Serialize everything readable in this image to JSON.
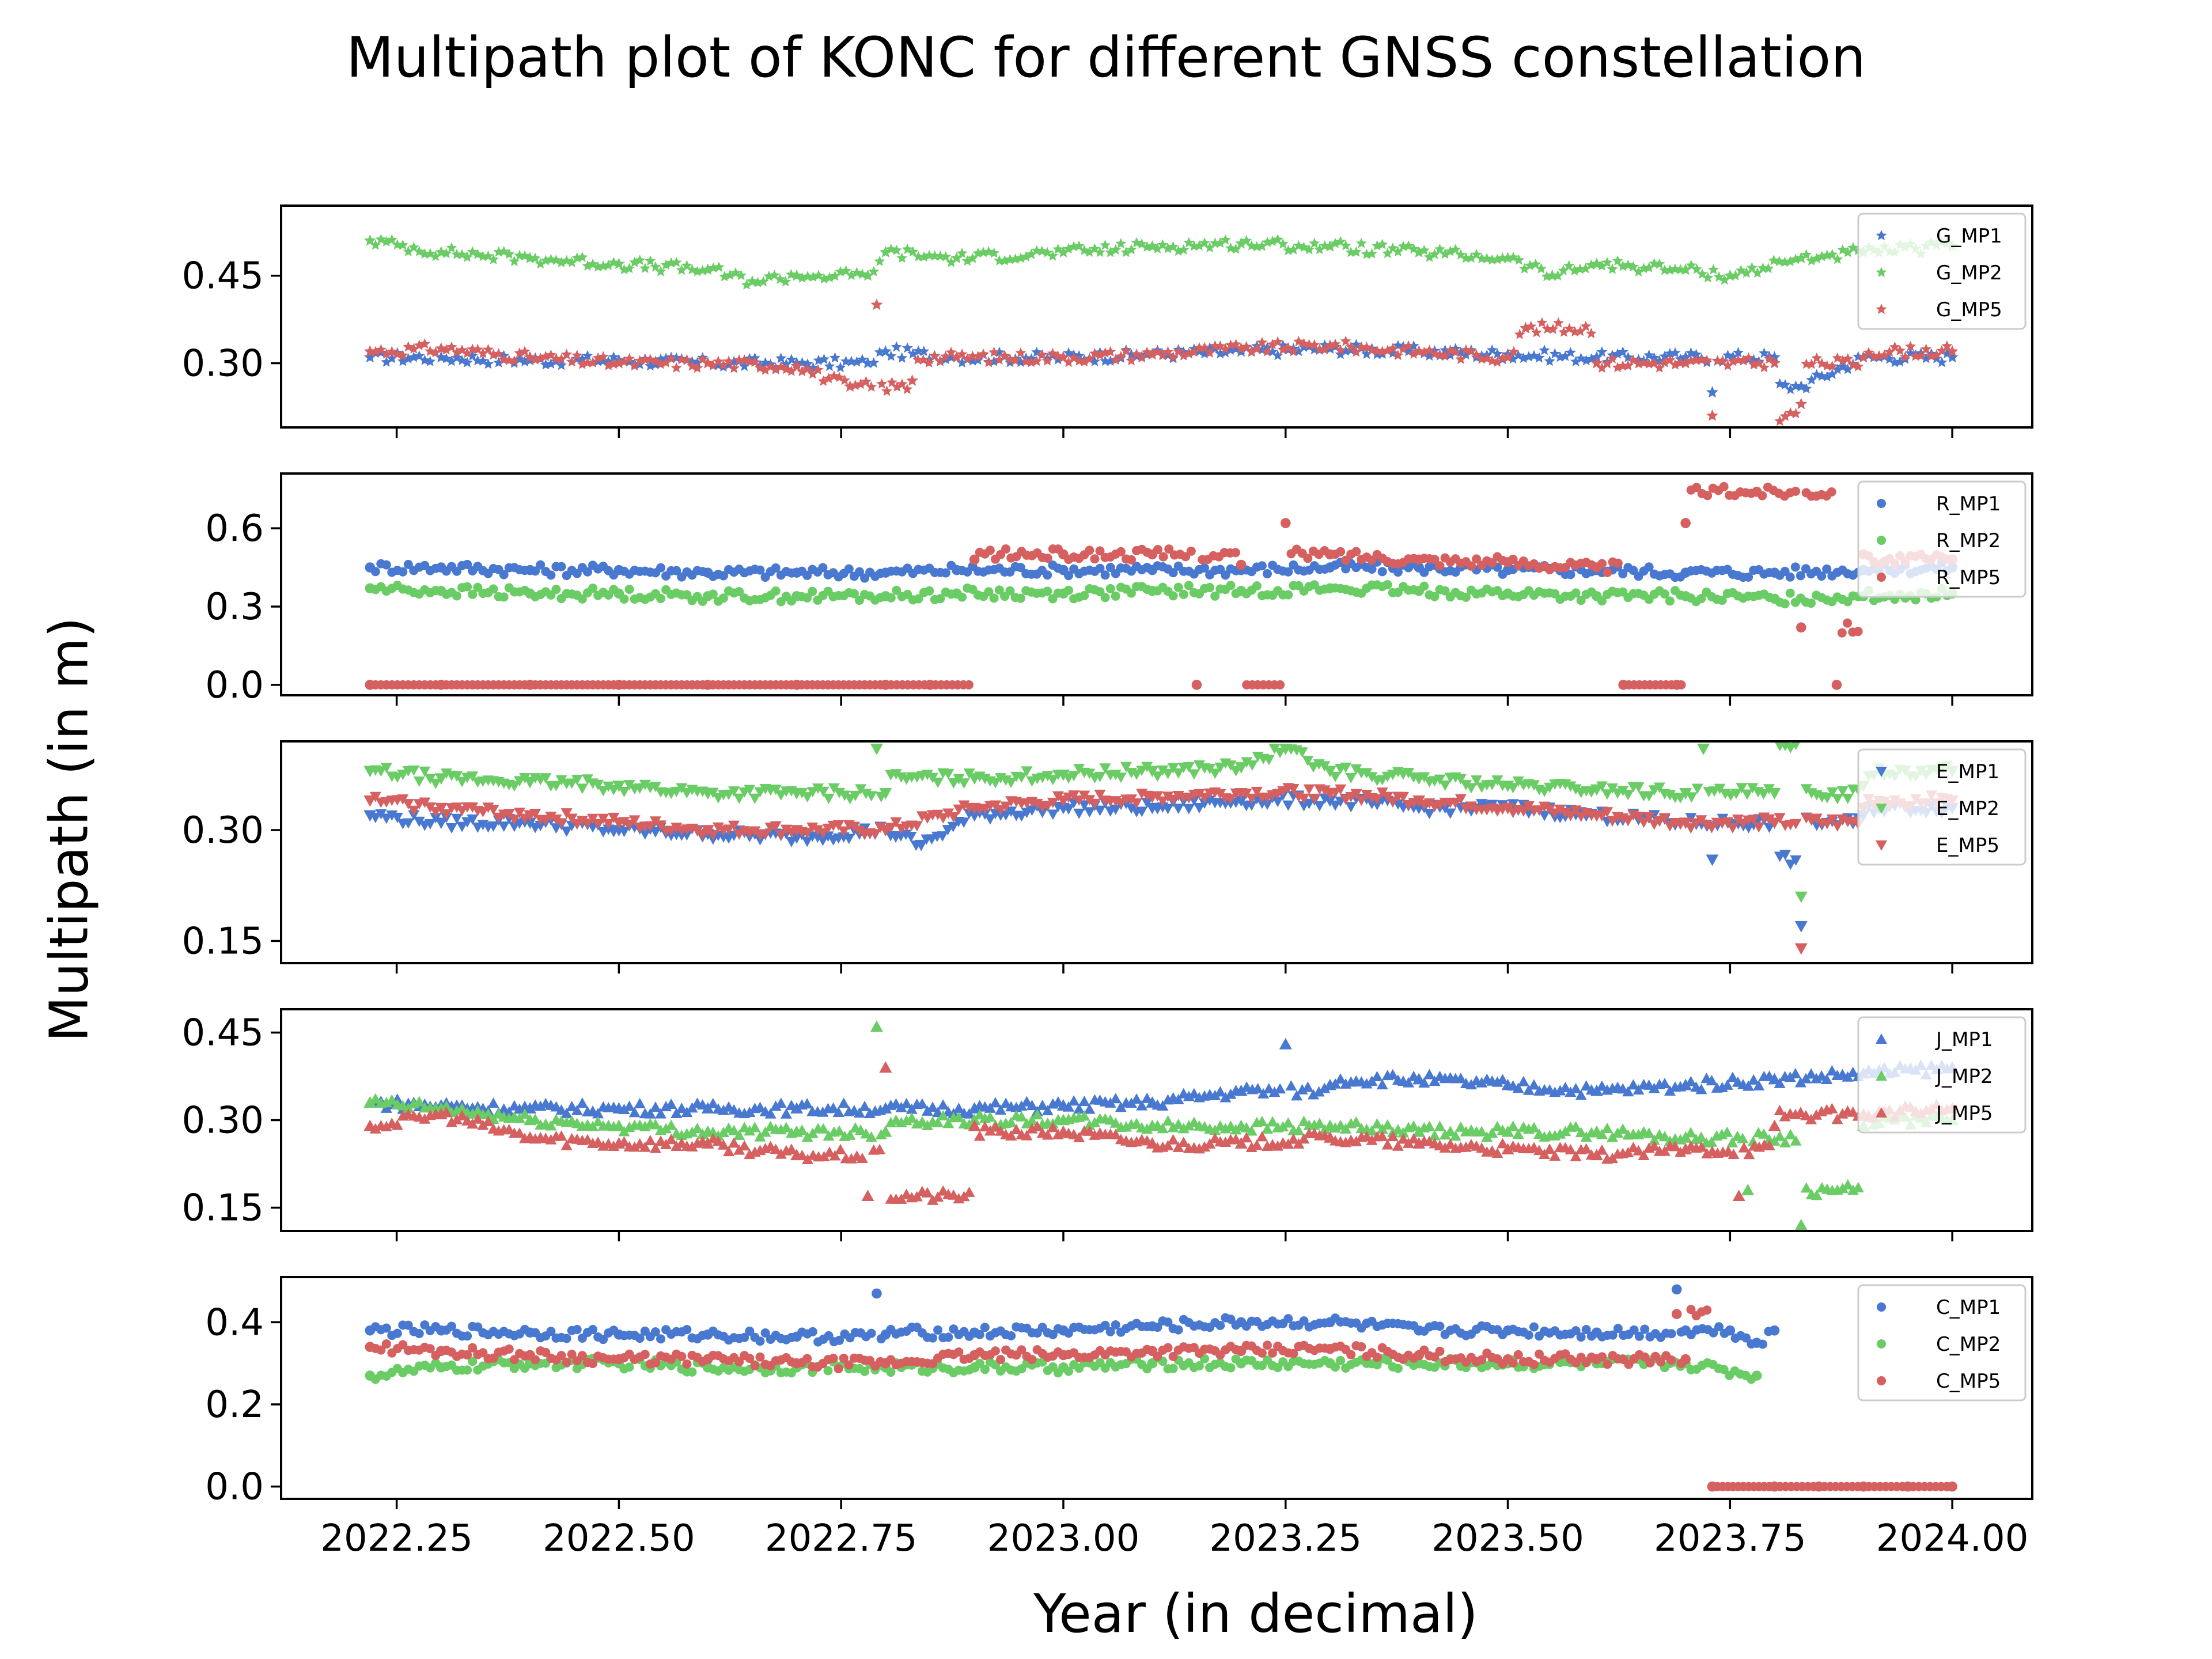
{
  "figure": {
    "title": "Multipath plot of KONC for different GNSS constellation",
    "xlabel": "Year (in decimal)",
    "ylabel": "Multipath (in m)"
  },
  "chart_data": [
    {
      "type": "scatter",
      "panel": "G",
      "xlim": [
        2022.12,
        2024.09
      ],
      "ylim": [
        0.19,
        0.57
      ],
      "yticks": [
        0.3,
        0.45
      ],
      "ytick_labels": [
        "0.30",
        "0.45"
      ],
      "marker": "star",
      "legend": "upper-right",
      "colors": {
        "MP1": "#4878d0",
        "MP2": "#6acc64",
        "MP5": "#d65f5f"
      },
      "series": [
        {
          "name": "G_MP1",
          "color": "#4878d0",
          "x": [
            2022.22,
            2022.3,
            2022.4,
            2022.5,
            2022.6,
            2022.7,
            2022.78,
            2022.8,
            2022.88,
            2023.0,
            2023.1,
            2023.2,
            2023.3,
            2023.4,
            2023.5,
            2023.6,
            2023.7,
            2023.73,
            2023.8,
            2023.83,
            2023.9,
            2024.0
          ],
          "y": [
            0.31,
            0.31,
            0.305,
            0.305,
            0.3,
            0.3,
            0.3,
            0.32,
            0.31,
            0.31,
            0.315,
            0.32,
            0.325,
            0.32,
            0.315,
            0.31,
            0.31,
            0.25,
            0.31,
            0.26,
            0.31,
            0.31
          ]
        },
        {
          "name": "G_MP2",
          "color": "#6acc64",
          "x": [
            2022.22,
            2022.3,
            2022.4,
            2022.5,
            2022.6,
            2022.65,
            2022.7,
            2022.78,
            2022.8,
            2022.88,
            2023.0,
            2023.1,
            2023.2,
            2023.3,
            2023.4,
            2023.5,
            2023.55,
            2023.6,
            2023.7,
            2023.75,
            2023.83,
            2023.9,
            2024.0
          ],
          "y": [
            0.51,
            0.49,
            0.48,
            0.47,
            0.46,
            0.44,
            0.45,
            0.45,
            0.49,
            0.48,
            0.49,
            0.5,
            0.505,
            0.5,
            0.49,
            0.48,
            0.45,
            0.47,
            0.46,
            0.45,
            0.48,
            0.49,
            0.5
          ]
        },
        {
          "name": "G_MP5",
          "color": "#d65f5f",
          "x": [
            2022.22,
            2022.3,
            2022.4,
            2022.5,
            2022.6,
            2022.7,
            2022.76,
            2022.79,
            2022.83,
            2022.88,
            2023.0,
            2023.1,
            2023.2,
            2023.3,
            2023.4,
            2023.5,
            2023.52,
            2023.6,
            2023.7,
            2023.73,
            2023.8,
            2023.83,
            2023.9,
            2024.0
          ],
          "y": [
            0.32,
            0.325,
            0.31,
            0.3,
            0.3,
            0.295,
            0.26,
            0.4,
            0.27,
            0.31,
            0.31,
            0.315,
            0.325,
            0.33,
            0.32,
            0.31,
            0.36,
            0.3,
            0.3,
            0.21,
            0.3,
            0.23,
            0.31,
            0.32
          ]
        }
      ]
    },
    {
      "type": "scatter",
      "panel": "R",
      "xlim": [
        2022.12,
        2024.09
      ],
      "ylim": [
        -0.04,
        0.81
      ],
      "yticks": [
        0.0,
        0.3,
        0.6
      ],
      "ytick_labels": [
        "0.0",
        "0.3",
        "0.6"
      ],
      "marker": "circle",
      "legend": "upper-right",
      "series": [
        {
          "name": "R_MP1",
          "color": "#4878d0",
          "x": [
            2022.22,
            2022.3,
            2022.4,
            2022.5,
            2022.6,
            2022.7,
            2022.8,
            2022.88,
            2023.0,
            2023.1,
            2023.2,
            2023.3,
            2023.4,
            2023.5,
            2023.6,
            2023.7,
            2023.8,
            2023.9,
            2024.0
          ],
          "y": [
            0.45,
            0.45,
            0.44,
            0.44,
            0.43,
            0.43,
            0.43,
            0.44,
            0.44,
            0.44,
            0.44,
            0.45,
            0.45,
            0.44,
            0.44,
            0.43,
            0.43,
            0.44,
            0.45
          ]
        },
        {
          "name": "R_MP2",
          "color": "#6acc64",
          "x": [
            2022.22,
            2022.3,
            2022.4,
            2022.5,
            2022.6,
            2022.7,
            2022.8,
            2022.88,
            2023.0,
            2023.1,
            2023.2,
            2023.3,
            2023.4,
            2023.5,
            2023.6,
            2023.7,
            2023.8,
            2023.9,
            2024.0
          ],
          "y": [
            0.37,
            0.36,
            0.35,
            0.35,
            0.34,
            0.34,
            0.34,
            0.35,
            0.35,
            0.36,
            0.36,
            0.37,
            0.36,
            0.35,
            0.34,
            0.34,
            0.33,
            0.34,
            0.35
          ]
        },
        {
          "name": "R_MP5",
          "color": "#d65f5f",
          "x": [
            2022.22,
            2022.3,
            2022.4,
            2022.5,
            2022.6,
            2022.7,
            2022.8,
            2022.85,
            2022.9,
            2023.0,
            2023.1,
            2023.15,
            2023.2,
            2023.25,
            2023.3,
            2023.4,
            2023.5,
            2023.6,
            2023.63,
            2023.69,
            2023.7,
            2023.78,
            2023.83,
            2023.87,
            2023.9,
            2024.0
          ],
          "y": [
            0.0,
            0.0,
            0.0,
            0.0,
            0.0,
            0.0,
            0.0,
            0.0,
            0.48,
            0.5,
            0.5,
            0.0,
            0.46,
            0.62,
            0.5,
            0.48,
            0.47,
            0.45,
            0.0,
            0.0,
            0.62,
            0.74,
            0.22,
            0.0,
            0.5,
            0.48
          ]
        }
      ]
    },
    {
      "type": "scatter",
      "panel": "E",
      "xlim": [
        2022.12,
        2024.09
      ],
      "ylim": [
        0.12,
        0.42
      ],
      "yticks": [
        0.15,
        0.3
      ],
      "ytick_labels": [
        "0.15",
        "0.30"
      ],
      "marker": "triangle-down",
      "legend": "upper-right",
      "series": [
        {
          "name": "E_MP1",
          "color": "#4878d0",
          "x": [
            2022.22,
            2022.3,
            2022.4,
            2022.5,
            2022.6,
            2022.7,
            2022.8,
            2022.84,
            2022.9,
            2023.0,
            2023.1,
            2023.2,
            2023.3,
            2023.4,
            2023.5,
            2023.6,
            2023.7,
            2023.73,
            2023.8,
            2023.83,
            2023.9,
            2024.0
          ],
          "y": [
            0.32,
            0.31,
            0.31,
            0.3,
            0.295,
            0.29,
            0.3,
            0.28,
            0.32,
            0.33,
            0.33,
            0.34,
            0.34,
            0.33,
            0.33,
            0.32,
            0.31,
            0.26,
            0.31,
            0.17,
            0.32,
            0.33
          ]
        },
        {
          "name": "E_MP2",
          "color": "#6acc64",
          "x": [
            2022.22,
            2022.3,
            2022.4,
            2022.5,
            2022.6,
            2022.7,
            2022.79,
            2022.8,
            2022.9,
            2023.0,
            2023.1,
            2023.2,
            2023.25,
            2023.3,
            2023.4,
            2023.5,
            2023.6,
            2023.7,
            2023.72,
            2023.8,
            2023.83,
            2023.9,
            2024.0
          ],
          "y": [
            0.38,
            0.37,
            0.365,
            0.36,
            0.35,
            0.35,
            0.41,
            0.35,
            0.37,
            0.375,
            0.38,
            0.385,
            0.41,
            0.38,
            0.37,
            0.36,
            0.355,
            0.35,
            0.41,
            0.35,
            0.21,
            0.36,
            0.38
          ]
        },
        {
          "name": "E_MP5",
          "color": "#d65f5f",
          "x": [
            2022.22,
            2022.3,
            2022.4,
            2022.5,
            2022.6,
            2022.7,
            2022.8,
            2022.9,
            2023.0,
            2023.1,
            2023.2,
            2023.3,
            2023.4,
            2023.5,
            2023.6,
            2023.7,
            2023.8,
            2023.83,
            2023.9,
            2024.0
          ],
          "y": [
            0.34,
            0.33,
            0.32,
            0.31,
            0.3,
            0.3,
            0.3,
            0.33,
            0.34,
            0.345,
            0.35,
            0.35,
            0.34,
            0.33,
            0.32,
            0.31,
            0.31,
            0.14,
            0.33,
            0.34
          ]
        }
      ]
    },
    {
      "type": "scatter",
      "panel": "J",
      "xlim": [
        2022.12,
        2024.09
      ],
      "ylim": [
        0.11,
        0.49
      ],
      "yticks": [
        0.15,
        0.3,
        0.45
      ],
      "ytick_labels": [
        "0.15",
        "0.30",
        "0.45"
      ],
      "marker": "triangle-up",
      "legend": "upper-right",
      "series": [
        {
          "name": "J_MP1",
          "color": "#4878d0",
          "x": [
            2022.22,
            2022.3,
            2022.4,
            2022.5,
            2022.6,
            2022.7,
            2022.8,
            2022.9,
            2023.0,
            2023.1,
            2023.2,
            2023.25,
            2023.3,
            2023.4,
            2023.5,
            2023.6,
            2023.7,
            2023.8,
            2023.9,
            2024.0
          ],
          "y": [
            0.33,
            0.325,
            0.32,
            0.32,
            0.32,
            0.32,
            0.32,
            0.32,
            0.325,
            0.33,
            0.35,
            0.43,
            0.36,
            0.37,
            0.36,
            0.35,
            0.36,
            0.37,
            0.38,
            0.39
          ]
        },
        {
          "name": "J_MP2",
          "color": "#6acc64",
          "x": [
            2022.22,
            2022.3,
            2022.4,
            2022.5,
            2022.6,
            2022.7,
            2022.79,
            2022.8,
            2022.9,
            2023.0,
            2023.1,
            2023.2,
            2023.3,
            2023.4,
            2023.5,
            2023.6,
            2023.7,
            2023.77,
            2023.83,
            2023.9,
            2024.0
          ],
          "y": [
            0.33,
            0.32,
            0.3,
            0.29,
            0.28,
            0.28,
            0.46,
            0.28,
            0.3,
            0.3,
            0.29,
            0.29,
            0.29,
            0.28,
            0.28,
            0.28,
            0.27,
            0.18,
            0.12,
            0.29,
            0.3
          ]
        },
        {
          "name": "J_MP5",
          "color": "#d65f5f",
          "x": [
            2022.22,
            2022.3,
            2022.4,
            2022.5,
            2022.6,
            2022.7,
            2022.78,
            2022.8,
            2022.9,
            2023.0,
            2023.1,
            2023.2,
            2023.3,
            2023.4,
            2023.5,
            2023.6,
            2023.7,
            2023.76,
            2023.8,
            2023.9,
            2024.0
          ],
          "y": [
            0.29,
            0.31,
            0.27,
            0.26,
            0.26,
            0.24,
            0.17,
            0.39,
            0.29,
            0.28,
            0.26,
            0.26,
            0.27,
            0.26,
            0.25,
            0.24,
            0.25,
            0.17,
            0.29,
            0.31,
            0.32
          ]
        }
      ]
    },
    {
      "type": "scatter",
      "panel": "C",
      "xlim": [
        2022.12,
        2024.09
      ],
      "ylim": [
        -0.03,
        0.51
      ],
      "yticks": [
        0.0,
        0.2,
        0.4
      ],
      "ytick_labels": [
        "0.0",
        "0.2",
        "0.4"
      ],
      "marker": "circle",
      "legend": "upper-right",
      "series": [
        {
          "name": "C_MP1",
          "color": "#4878d0",
          "x": [
            2022.22,
            2022.3,
            2022.4,
            2022.5,
            2022.6,
            2022.7,
            2022.79,
            2022.8,
            2022.9,
            2023.0,
            2023.1,
            2023.2,
            2023.3,
            2023.4,
            2023.5,
            2023.6,
            2023.69,
            2023.7,
            2023.75,
            2023.78,
            2023.8
          ],
          "y": [
            0.38,
            0.38,
            0.375,
            0.37,
            0.37,
            0.365,
            0.47,
            0.37,
            0.375,
            0.38,
            0.39,
            0.4,
            0.4,
            0.38,
            0.38,
            0.375,
            0.48,
            0.38,
            0.38,
            0.35,
            0.38
          ]
        },
        {
          "name": "C_MP2",
          "color": "#6acc64",
          "x": [
            2022.22,
            2022.3,
            2022.4,
            2022.5,
            2022.6,
            2022.7,
            2022.8,
            2022.9,
            2023.0,
            2023.1,
            2023.2,
            2023.3,
            2023.4,
            2023.5,
            2023.6,
            2023.7,
            2023.78
          ],
          "y": [
            0.27,
            0.29,
            0.3,
            0.3,
            0.29,
            0.29,
            0.29,
            0.29,
            0.29,
            0.3,
            0.3,
            0.3,
            0.3,
            0.3,
            0.3,
            0.3,
            0.27
          ]
        },
        {
          "name": "C_MP5",
          "color": "#d65f5f",
          "x": [
            2022.22,
            2022.3,
            2022.4,
            2022.5,
            2022.6,
            2022.7,
            2022.8,
            2022.9,
            2023.0,
            2023.1,
            2023.2,
            2023.3,
            2023.4,
            2023.5,
            2023.6,
            2023.69,
            2023.7,
            2023.73,
            2023.8,
            2023.85,
            2023.9,
            2023.95,
            2024.0
          ],
          "y": [
            0.34,
            0.33,
            0.32,
            0.31,
            0.31,
            0.3,
            0.3,
            0.32,
            0.32,
            0.33,
            0.33,
            0.335,
            0.32,
            0.31,
            0.31,
            0.42,
            0.31,
            0.0,
            0.0,
            0.0,
            0.0,
            0.0,
            0.0
          ]
        }
      ]
    }
  ],
  "xaxis": {
    "ticks": [
      2022.25,
      2022.5,
      2022.75,
      2023.0,
      2023.25,
      2023.5,
      2023.75,
      2024.0
    ],
    "tick_labels": [
      "2022.25",
      "2022.50",
      "2022.75",
      "2023.00",
      "2023.25",
      "2023.50",
      "2023.75",
      "2024.00"
    ]
  }
}
